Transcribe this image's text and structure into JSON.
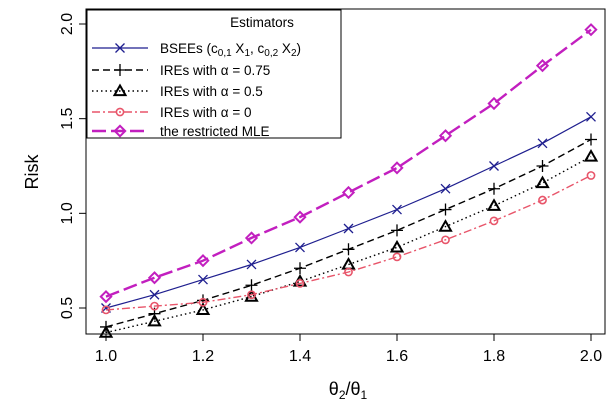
{
  "chart_data": {
    "type": "line",
    "xlabel": "θ2/θ1",
    "xlabel_main": "θ",
    "xlabel_sub1": "2",
    "xlabel_sep": "/θ",
    "xlabel_sub2": "1",
    "ylabel": "Risk",
    "xlim": [
      1.0,
      2.0
    ],
    "ylim": [
      0.4,
      2.0
    ],
    "xticks": [
      "1.0",
      "1.2",
      "1.4",
      "1.6",
      "1.8",
      "2.0"
    ],
    "yticks": [
      "0.5",
      "1.0",
      "1.5",
      "2.0"
    ],
    "legend_title": "Estimators",
    "legend_position": "top-left",
    "x": [
      1.0,
      1.1,
      1.2,
      1.3,
      1.4,
      1.5,
      1.6,
      1.7,
      1.8,
      1.9,
      2.0
    ],
    "series": [
      {
        "name": "BSEEs (c0,1 X1, c0,2 X2)",
        "label_parts": [
          "BSEEs (c",
          "0,1",
          " X",
          "1",
          ", c",
          "0,2",
          " X",
          "2",
          ")"
        ],
        "color": "#1f1f8f",
        "dash": "",
        "marker": "cross",
        "values": [
          0.5,
          0.57,
          0.65,
          0.73,
          0.82,
          0.92,
          1.02,
          1.13,
          1.25,
          1.37,
          1.51
        ]
      },
      {
        "name": "IREs with α = 0.75",
        "color": "#000000",
        "dash": "7,4",
        "marker": "plus",
        "values": [
          0.4,
          0.47,
          0.54,
          0.62,
          0.71,
          0.81,
          0.91,
          1.02,
          1.13,
          1.25,
          1.39
        ]
      },
      {
        "name": "IREs with α = 0.5",
        "color": "#000000",
        "dash": "1.5,3",
        "marker": "triangle",
        "values": [
          0.37,
          0.43,
          0.49,
          0.56,
          0.64,
          0.73,
          0.82,
          0.93,
          1.04,
          1.16,
          1.3
        ]
      },
      {
        "name": "IREs with α = 0",
        "color": "#e8556a",
        "dash": "8,3,2,3",
        "marker": "circle",
        "values": [
          0.49,
          0.51,
          0.53,
          0.57,
          0.63,
          0.69,
          0.77,
          0.86,
          0.96,
          1.07,
          1.2
        ]
      },
      {
        "name": "the restricted MLE",
        "color": "#c21fbf",
        "dash": "14,5",
        "marker": "diamond",
        "values": [
          0.56,
          0.66,
          0.75,
          0.87,
          0.98,
          1.11,
          1.24,
          1.41,
          1.58,
          1.78,
          1.97
        ]
      }
    ]
  }
}
